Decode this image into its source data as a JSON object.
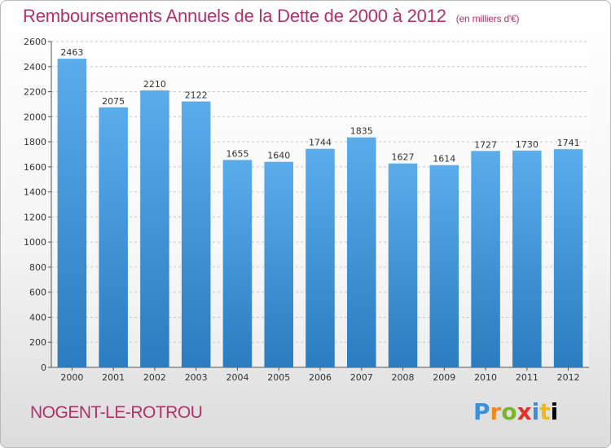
{
  "title": "Remboursements Annuels de la Dette de 2000 à 2012",
  "unit": "(en milliers d'€)",
  "city": "NOGENT-LE-ROTROU",
  "logo": [
    "P",
    "r",
    "o",
    "x",
    "i",
    "t",
    "i"
  ],
  "colors": {
    "bar": "#4a9ee0",
    "bar_dark": "#2d7fc4",
    "title": "#b5306a"
  },
  "chart_data": {
    "type": "bar",
    "title": "Remboursements Annuels de la Dette de 2000 à 2012",
    "xlabel": "",
    "ylabel": "",
    "categories": [
      "2000",
      "2001",
      "2002",
      "2003",
      "2004",
      "2005",
      "2006",
      "2007",
      "2008",
      "2009",
      "2010",
      "2011",
      "2012"
    ],
    "values": [
      2463,
      2075,
      2210,
      2122,
      1655,
      1640,
      1744,
      1835,
      1627,
      1614,
      1727,
      1730,
      1741
    ],
    "ylim": [
      0,
      2600
    ],
    "yticks": [
      0,
      200,
      400,
      600,
      800,
      1000,
      1200,
      1400,
      1600,
      1800,
      2000,
      2200,
      2400,
      2600
    ],
    "grid": true,
    "legend": "none"
  }
}
